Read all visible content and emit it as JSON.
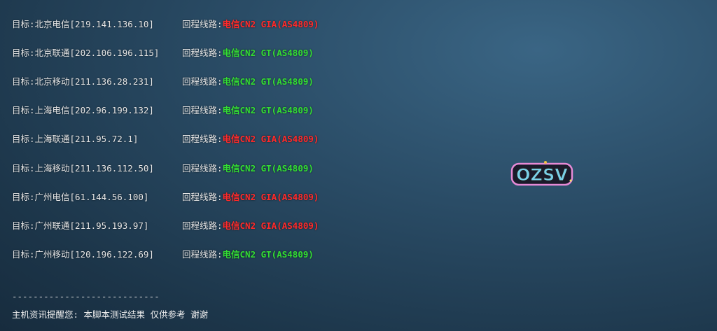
{
  "route_label": "回程线路:",
  "colors": {
    "gia": "#ff2a2a",
    "gt": "#33dd33"
  },
  "rows": [
    {
      "target": "目标:北京电信[219.141.136.10]",
      "route": "电信CN2 GIA(AS4809)",
      "type": "gia"
    },
    {
      "target": "目标:北京联通[202.106.196.115]",
      "route": "电信CN2 GT(AS4809)",
      "type": "gt"
    },
    {
      "target": "目标:北京移动[211.136.28.231]",
      "route": "电信CN2 GT(AS4809)",
      "type": "gt"
    },
    {
      "target": "目标:上海电信[202.96.199.132]",
      "route": "电信CN2 GT(AS4809)",
      "type": "gt"
    },
    {
      "target": "目标:上海联通[211.95.72.1]",
      "route": "电信CN2 GIA(AS4809)",
      "type": "gia"
    },
    {
      "target": "目标:上海移动[211.136.112.50]",
      "route": "电信CN2 GT(AS4809)",
      "type": "gt"
    },
    {
      "target": "目标:广州电信[61.144.56.100]",
      "route": "电信CN2 GIA(AS4809)",
      "type": "gia"
    },
    {
      "target": "目标:广州联通[211.95.193.97]",
      "route": "电信CN2 GIA(AS4809)",
      "type": "gia"
    },
    {
      "target": "目标:广州移动[120.196.122.69]",
      "route": "电信CN2 GT(AS4809)",
      "type": "gt"
    }
  ],
  "separator": "----------------------------",
  "footer": "主机资讯提醒您: 本脚本测试结果 仅供参考 谢谢",
  "watermark": "OZSV"
}
